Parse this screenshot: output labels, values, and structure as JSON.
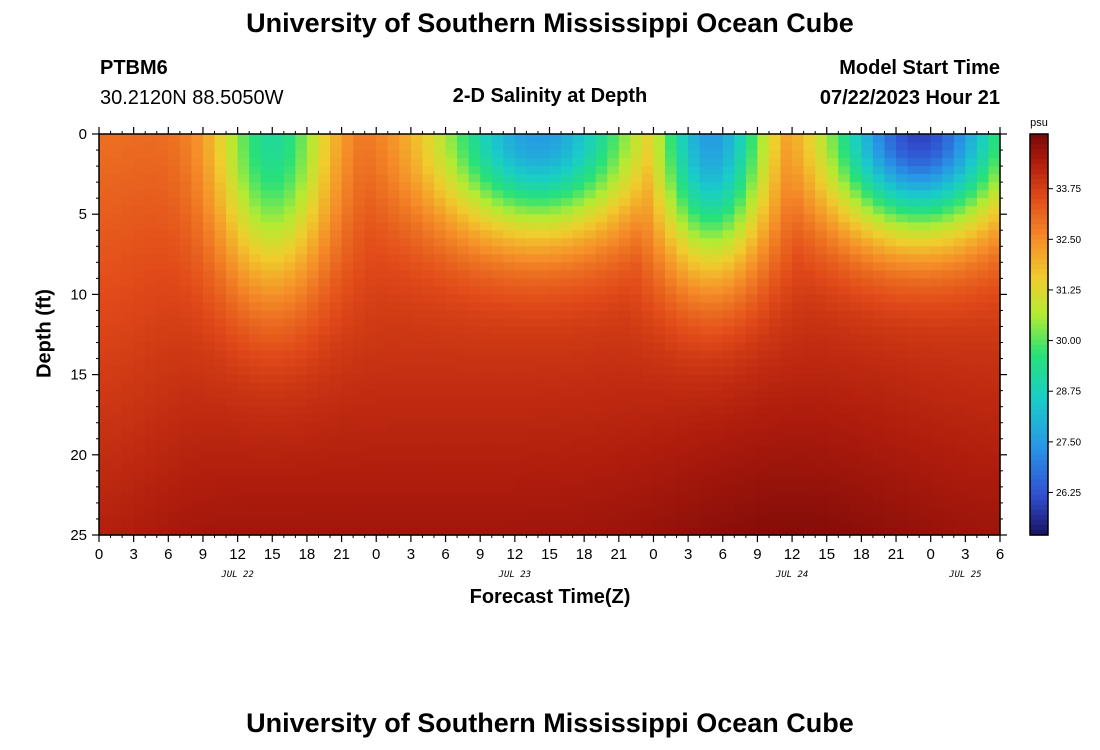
{
  "header": {
    "title": "University of Southern Mississippi Ocean Cube",
    "station_id": "PTBM6",
    "station_coords": "30.2120N  88.5050W",
    "plot_title": "2-D Salinity at Depth",
    "model_start_label": "Model Start Time",
    "model_start_value": "07/22/2023 Hour 21"
  },
  "footer": {
    "title": "University of Southern Mississippi Ocean Cube"
  },
  "colors": {
    "frame": "#000000",
    "background": "#ffffff"
  },
  "chart_data": {
    "type": "heatmap",
    "title": "2-D Salinity at Depth",
    "xlabel": "Forecast Time(Z)",
    "ylabel": "Depth (ft)",
    "x_tick_labels": [
      "0",
      "3",
      "6",
      "9",
      "12",
      "15",
      "18",
      "21",
      "0",
      "3",
      "6",
      "9",
      "12",
      "15",
      "18",
      "21",
      "0",
      "3",
      "6",
      "9",
      "12",
      "15",
      "18",
      "21",
      "0",
      "3",
      "6"
    ],
    "x_hours_range": [
      0,
      78
    ],
    "date_labels": [
      {
        "label": "JUL 22",
        "hour": 12
      },
      {
        "label": "JUL 23",
        "hour": 36
      },
      {
        "label": "JUL 24",
        "hour": 60
      },
      {
        "label": "JUL 25",
        "hour": 75
      }
    ],
    "y_tick_labels": [
      "0",
      "5",
      "10",
      "15",
      "20",
      "25"
    ],
    "ylim": [
      0,
      25
    ],
    "colorbar": {
      "unit": "psu",
      "range": [
        25.2,
        35.1
      ],
      "tick_labels": [
        "26.25",
        "27.50",
        "28.75",
        "30.00",
        "31.25",
        "32.50",
        "33.75"
      ]
    },
    "fresh_events": [
      {
        "center_hour": 15,
        "half_width_hours": 5,
        "depth_ft": 9,
        "min_psu": 29.2
      },
      {
        "center_hour": 38,
        "half_width_hours": 9,
        "depth_ft": 6,
        "min_psu": 27.5
      },
      {
        "center_hour": 53,
        "half_width_hours": 5,
        "depth_ft": 8,
        "min_psu": 27.5
      },
      {
        "center_hour": 71,
        "half_width_hours": 8,
        "depth_ft": 6,
        "min_psu": 26.0
      }
    ],
    "bottom_salinity_psu": 34.6,
    "surface_salinity_psu": 33.2
  }
}
